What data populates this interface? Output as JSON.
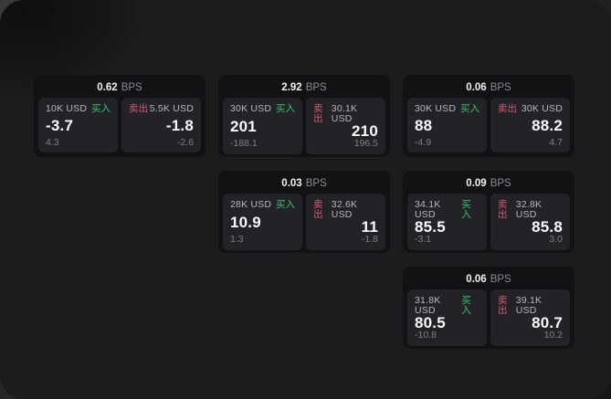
{
  "labels": {
    "unit": "BPS",
    "buy": "买入",
    "sell": "卖出"
  },
  "theme": {
    "backdrop": "#2d2d2f",
    "window_bg": "#1c1c1e",
    "card_bg": "#121214",
    "panel_bg": "#232327",
    "text_primary": "#fafafa",
    "text_secondary": "#b6b6bb",
    "text_muted": "#7e7e84",
    "buy_color": "#35c46d",
    "sell_color": "#d15a6f"
  },
  "cards": [
    {
      "bps": "0.62",
      "buy": {
        "size": "10K USD",
        "main": "-3.7",
        "sub": "4.3"
      },
      "sell": {
        "size": "5.5K USD",
        "main": "-1.8",
        "sub": "-2.6"
      }
    },
    {
      "bps": "2.92",
      "buy": {
        "size": "30K USD",
        "main": "201",
        "sub": "-188.1"
      },
      "sell": {
        "size": "30.1K USD",
        "main": "210",
        "sub": "196.5"
      }
    },
    {
      "bps": "0.06",
      "buy": {
        "size": "30K USD",
        "main": "88",
        "sub": "-4.9"
      },
      "sell": {
        "size": "30K USD",
        "main": "88.2",
        "sub": "4.7"
      }
    },
    {
      "bps": "0.03",
      "buy": {
        "size": "28K USD",
        "main": "10.9",
        "sub": "1.3"
      },
      "sell": {
        "size": "32.6K USD",
        "main": "11",
        "sub": "-1.8"
      }
    },
    {
      "bps": "0.09",
      "buy": {
        "size": "34.1K USD",
        "main": "85.5",
        "sub": "-3.1"
      },
      "sell": {
        "size": "32.8K USD",
        "main": "85.8",
        "sub": "3.0"
      }
    },
    {
      "bps": "0.06",
      "buy": {
        "size": "31.8K USD",
        "main": "80.5",
        "sub": "-10.8"
      },
      "sell": {
        "size": "39.1K USD",
        "main": "80.7",
        "sub": "10.2"
      }
    }
  ]
}
